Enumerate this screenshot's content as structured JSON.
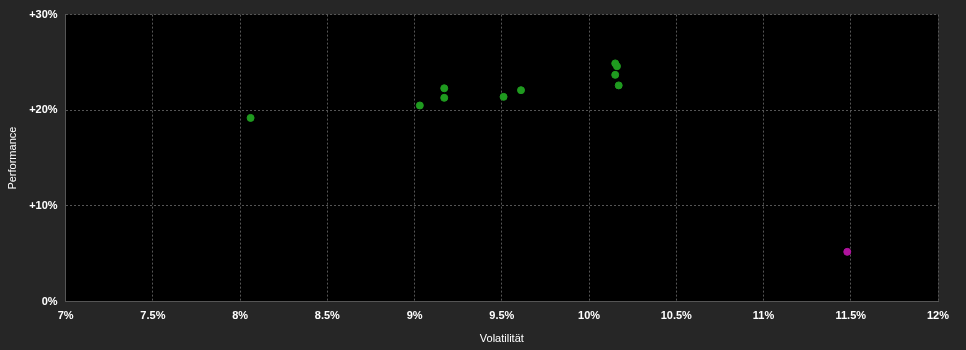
{
  "chart_data": {
    "type": "scatter",
    "x_label": "Volatilität",
    "y_label": "Performance",
    "xlim": [
      7,
      12
    ],
    "xticks": [
      {
        "value": 7,
        "label": "7%"
      },
      {
        "value": 7.5,
        "label": "7.5%"
      },
      {
        "value": 8,
        "label": "8%"
      },
      {
        "value": 8.5,
        "label": "8.5%"
      },
      {
        "value": 9,
        "label": "9%"
      },
      {
        "value": 9.5,
        "label": "9.5%"
      },
      {
        "value": 10,
        "label": "10%"
      },
      {
        "value": 10.5,
        "label": "10.5%"
      },
      {
        "value": 11,
        "label": "11%"
      },
      {
        "value": 11.5,
        "label": "11.5%"
      },
      {
        "value": 12,
        "label": "12%"
      }
    ],
    "ylim": [
      0,
      30
    ],
    "yticks": [
      {
        "value": 0,
        "label": "0%"
      },
      {
        "value": 10,
        "label": "+10%"
      },
      {
        "value": 20,
        "label": "+20%"
      },
      {
        "value": 30,
        "label": "+30%"
      }
    ],
    "grid": true,
    "series": [
      {
        "color": "#1f9a1f",
        "marker": "circle",
        "x": [
          8.06,
          9.03,
          9.17,
          9.17,
          9.51,
          9.61,
          10.15,
          10.16,
          10.15,
          10.17
        ],
        "values": [
          19.2,
          20.5,
          22.3,
          21.3,
          21.4,
          22.1,
          24.9,
          24.6,
          23.7,
          22.6
        ]
      },
      {
        "color": "#b0139e",
        "marker": "circle",
        "x": [
          11.48
        ],
        "values": [
          5.2
        ]
      }
    ]
  }
}
